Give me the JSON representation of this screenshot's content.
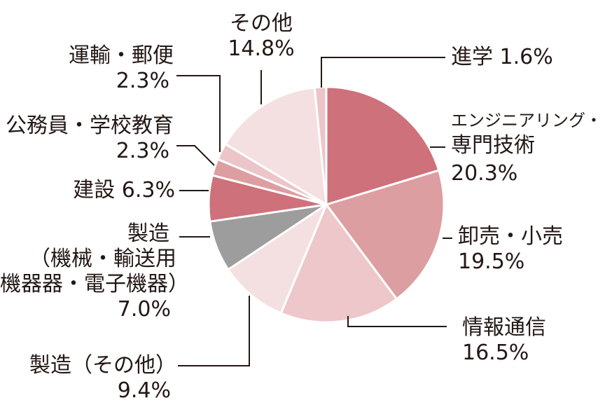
{
  "chart_data": {
    "type": "pie",
    "title": "",
    "slices": [
      {
        "label": "進学",
        "value": 1.6,
        "display": "1.6%",
        "color": "#ecc5c8"
      },
      {
        "label": "エンジニアリング・専門技術",
        "value": 20.3,
        "display": "20.3%",
        "color": "#ce717a"
      },
      {
        "label": "卸売・小売",
        "value": 19.5,
        "display": "19.5%",
        "color": "#dd9ea1"
      },
      {
        "label": "情報通信",
        "value": 16.5,
        "display": "16.5%",
        "color": "#edc7c9"
      },
      {
        "label": "製造（その他）",
        "value": 9.4,
        "display": "9.4%",
        "color": "#f4e0e1"
      },
      {
        "label": "製造（機械・輸送用機器器・電子機器）",
        "value": 7.0,
        "display": "7.0%",
        "color": "#9d9d9d"
      },
      {
        "label": "建設",
        "value": 6.3,
        "display": "6.3%",
        "color": "#ce717a"
      },
      {
        "label": "公務員・学校教育",
        "value": 2.3,
        "display": "2.3%",
        "color": "#dd9ea1"
      },
      {
        "label": "運輸・郵便",
        "value": 2.3,
        "display": "2.3%",
        "color": "#ecc5c8"
      },
      {
        "label": "その他",
        "value": 14.8,
        "display": "14.8%",
        "color": "#f4e0e1"
      }
    ]
  },
  "labels": {
    "shingaku": {
      "name": "進学",
      "pct": "1.6%"
    },
    "engineering": {
      "line1": "エンジニアリング・",
      "line2": "専門技術",
      "pct": "20.3%"
    },
    "oroshi": {
      "name": "卸売・小売",
      "pct": "19.5%"
    },
    "joho": {
      "name": "情報通信",
      "pct": "16.5%"
    },
    "seizo_other": {
      "name": "製造（その他）",
      "pct": "9.4%"
    },
    "seizo_kikai": {
      "line1": "製造",
      "line2": "（機械・輸送用",
      "line3": "機器器・電子機器）",
      "pct": "7.0%"
    },
    "kensetsu": {
      "name": "建設",
      "pct": "6.3%"
    },
    "komuin": {
      "name": "公務員・学校教育",
      "pct": "2.3%"
    },
    "unyu": {
      "name": "運輸・郵便",
      "pct": "2.3%"
    },
    "sonota": {
      "name": "その他",
      "pct": "14.8%"
    }
  }
}
